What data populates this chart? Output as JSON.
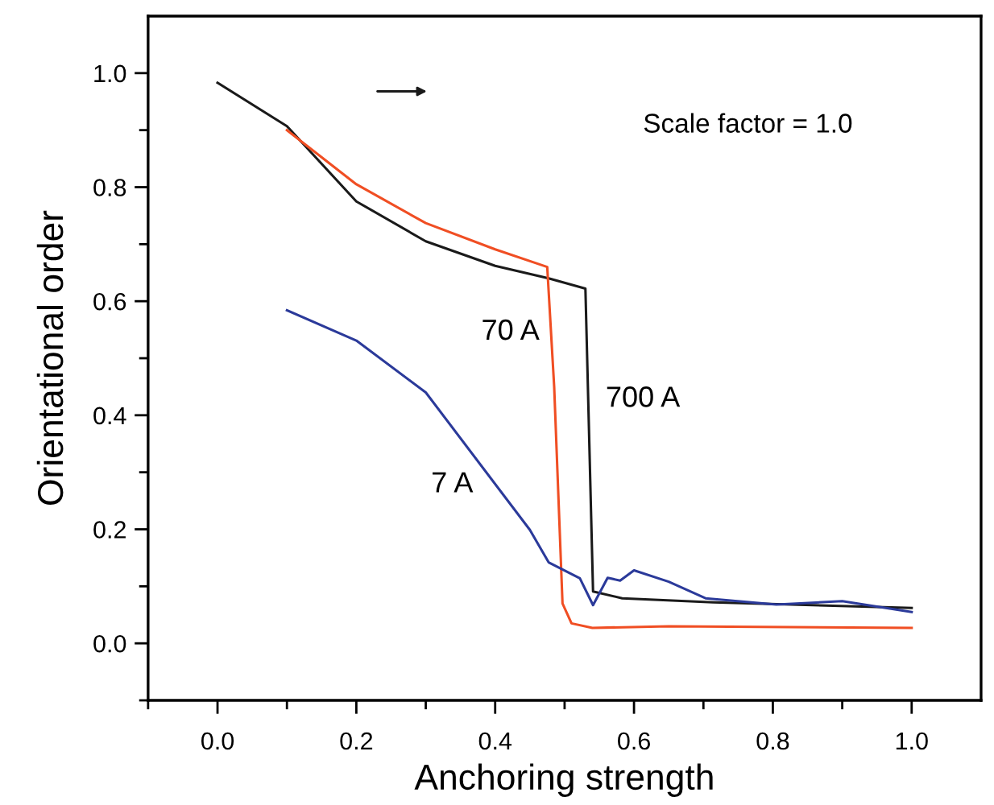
{
  "chart_data": {
    "type": "line",
    "xlabel": "Anchoring strength",
    "ylabel": "Orientational order",
    "xlim": [
      -0.1,
      1.1
    ],
    "ylim": [
      -0.1,
      1.1
    ],
    "xticks": [
      {
        "value": -0.1,
        "label": null
      },
      {
        "value": 0,
        "label": "0.0"
      },
      {
        "value": 0.1,
        "label": null
      },
      0.2,
      {
        "value": 0.3,
        "label": null
      },
      0.4,
      {
        "value": 0.5,
        "label": null
      },
      0.6,
      {
        "value": 0.7,
        "label": null
      },
      0.8,
      {
        "value": 0.9,
        "label": null
      },
      {
        "value": 1,
        "label": "1.0"
      }
    ],
    "yticks": [
      {
        "value": -0.1,
        "label": null
      },
      {
        "value": 0,
        "label": "0.0"
      },
      {
        "value": 0.1,
        "label": null
      },
      0.2,
      {
        "value": 0.3,
        "label": null
      },
      0.4,
      {
        "value": 0.5,
        "label": null
      },
      0.6,
      {
        "value": 0.7,
        "label": null
      },
      0.8,
      {
        "value": 0.9,
        "label": null
      },
      {
        "value": 1,
        "label": "1.0"
      }
    ],
    "grid": false,
    "legend": false,
    "marker": "none",
    "line_style": "solid",
    "series": [
      {
        "name": "700 A",
        "color": "#1a1a1a",
        "x": [
          0.0,
          0.1,
          0.2,
          0.3,
          0.4,
          0.477,
          0.53,
          0.541,
          0.583,
          0.714,
          1.0
        ],
        "values": [
          0.983,
          0.907,
          0.775,
          0.705,
          0.662,
          0.64,
          0.622,
          0.091,
          0.079,
          0.072,
          0.062
        ]
      },
      {
        "name": "70 A",
        "color": "#f04e23",
        "x": [
          0.1,
          0.2,
          0.3,
          0.4,
          0.475,
          0.485,
          0.497,
          0.51,
          0.54,
          0.65,
          1.0
        ],
        "values": [
          0.9,
          0.805,
          0.737,
          0.691,
          0.66,
          0.45,
          0.07,
          0.035,
          0.027,
          0.03,
          0.027
        ]
      },
      {
        "name": "7 A",
        "color": "#2b3a9a",
        "x": [
          0.1,
          0.2,
          0.3,
          0.45,
          0.477,
          0.522,
          0.541,
          0.562,
          0.58,
          0.6,
          0.65,
          0.703,
          0.805,
          0.9,
          1.0
        ],
        "values": [
          0.584,
          0.531,
          0.44,
          0.199,
          0.142,
          0.114,
          0.067,
          0.115,
          0.11,
          0.128,
          0.108,
          0.079,
          0.068,
          0.074,
          0.055
        ]
      }
    ],
    "annotations": [
      "Scale factor = 1.0"
    ]
  }
}
